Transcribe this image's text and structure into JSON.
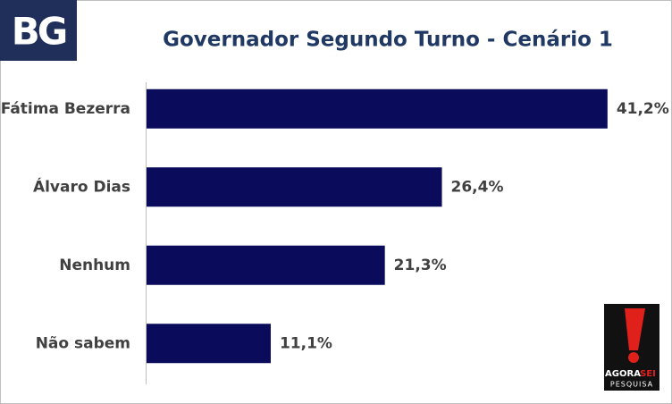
{
  "chart_data": {
    "type": "bar",
    "orientation": "horizontal",
    "title": "Governador Segundo Turno - Cenário 1",
    "categories": [
      "Fátima Bezerra",
      "Álvaro Dias",
      "Nenhum",
      "Não sabem"
    ],
    "values": [
      41.2,
      26.4,
      21.3,
      11.1
    ],
    "value_labels": [
      "41,2%",
      "26,4%",
      "21,3%",
      "11,1%"
    ],
    "color": "#0b0b5c"
  },
  "branding": {
    "left_logo": "BG",
    "right_logo_top": "AGORA",
    "right_logo_accent": "SEI",
    "right_logo_bottom": "PESQUISA"
  }
}
